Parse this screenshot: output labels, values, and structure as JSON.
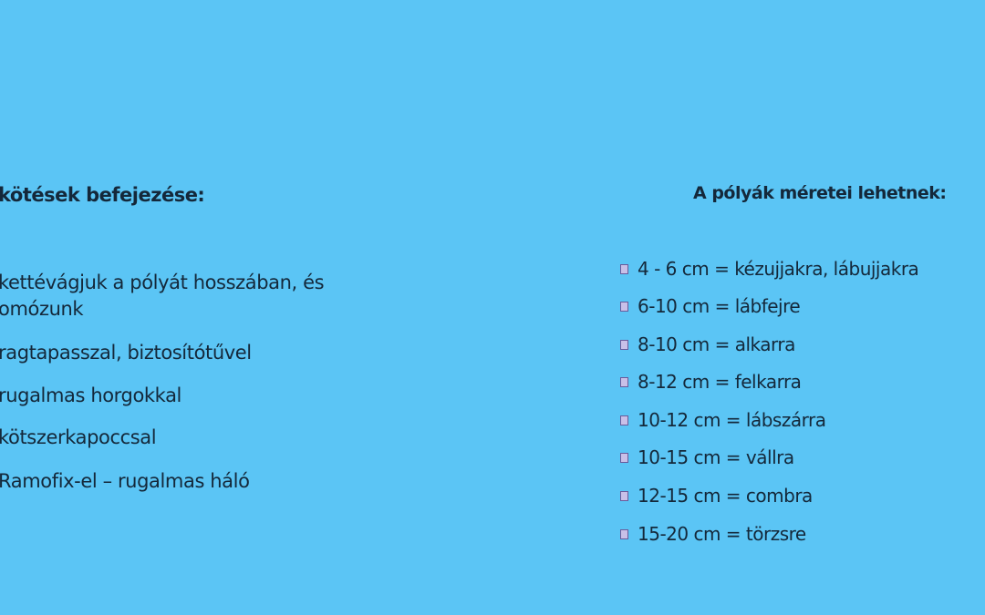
{
  "left": {
    "title": "kötések befejezése:",
    "items": [
      "kettévágjuk  a pólyát hosszában, és",
      "omózunk",
      "ragtapasszal, biztosítótűvel",
      "rugalmas horgokkal",
      "kötszerkapoccsal",
      "Ramofix-el – rugalmas háló"
    ]
  },
  "right": {
    "title": "A pólyák méretei lehetnek:",
    "bullet_icon": "missing-glyph-box",
    "items": [
      "4 - 6 cm = kézujjakra, lábujjakra",
      "6-10 cm = lábfejre",
      "8-10 cm = alkarra",
      "8-12 cm = felkarra",
      "10-12 cm = lábszárra",
      "10-15 cm = vállra",
      "12-15 cm = combra",
      "15-20 cm = törzsre"
    ]
  },
  "colors": {
    "background": "#5bc5f5",
    "text": "#14283a"
  }
}
